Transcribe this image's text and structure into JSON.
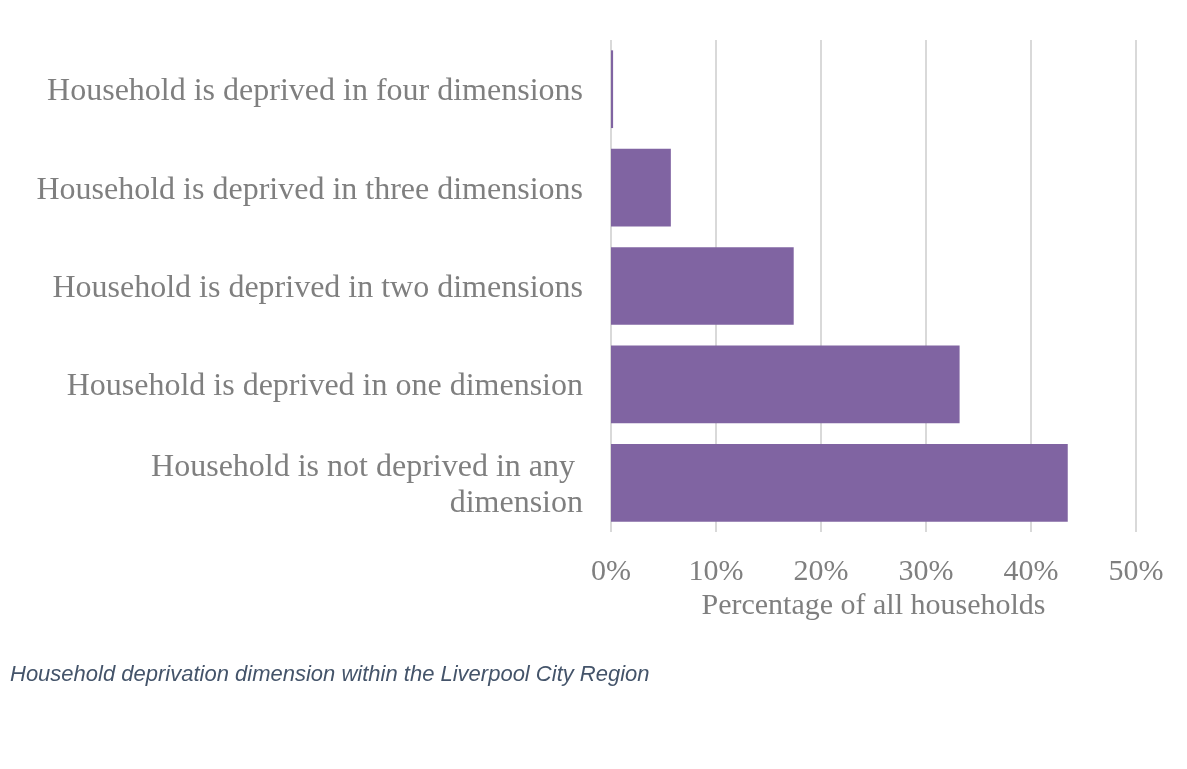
{
  "chart_data": {
    "type": "bar",
    "orientation": "horizontal",
    "categories": [
      "Household is deprived in four dimensions",
      "Household is deprived in three dimensions",
      "Household is deprived in two dimensions",
      "Household is deprived in one dimension",
      "Household is not deprived in any dimension"
    ],
    "values": [
      0.2,
      5.7,
      17.4,
      33.2,
      43.5
    ],
    "color": "#8064a2",
    "xlim": [
      0,
      50
    ],
    "xticks": [
      {
        "value": 0,
        "label": "0%"
      },
      {
        "value": 10,
        "label": "10%"
      },
      {
        "value": 20,
        "label": "20%"
      },
      {
        "value": 30,
        "label": "30%"
      },
      {
        "value": 40,
        "label": "40%"
      },
      {
        "value": 50,
        "label": "50%"
      }
    ],
    "xlabel": "Percentage of all households",
    "grid": "x",
    "annotations": [
      "Household deprivation dimension within the Liverpool City Region"
    ]
  }
}
